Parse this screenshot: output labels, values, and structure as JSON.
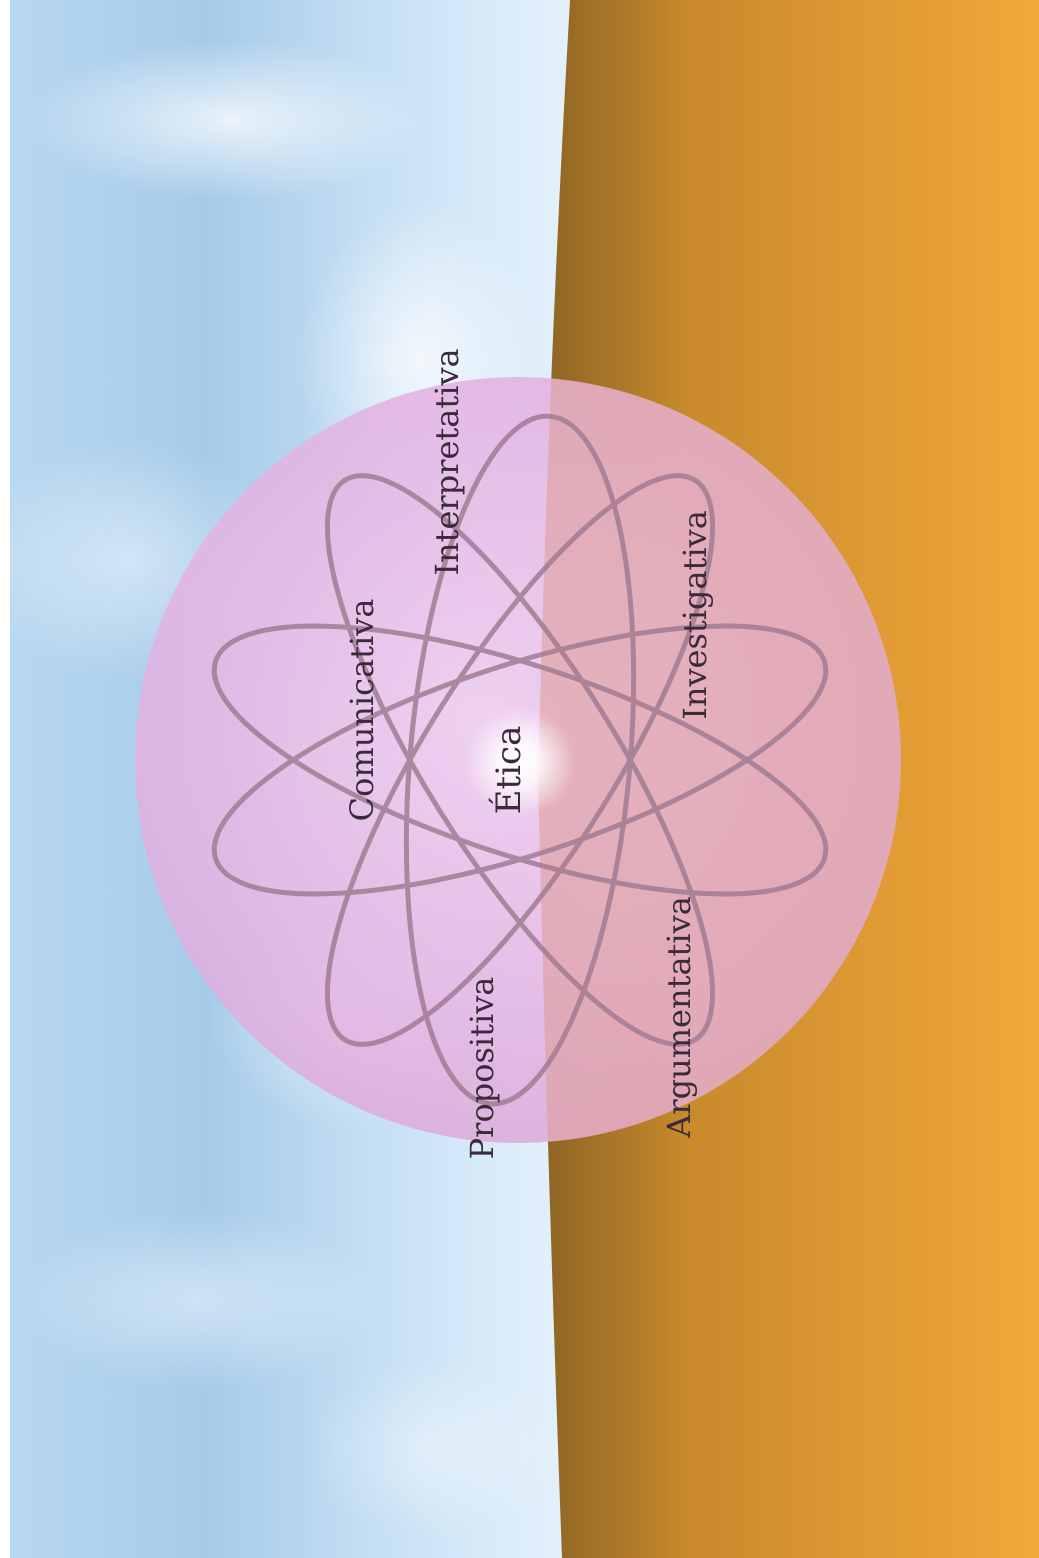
{
  "diagram": {
    "center_label": "Ética",
    "competencies": [
      "Interpretativa",
      "Comunicativa",
      "Investigativa",
      "Propositiva",
      "Argumentativa"
    ]
  },
  "colors": {
    "sky_light": "#dcecf8",
    "sky_mid": "#a9cdea",
    "ground_dark": "#8e6a2a",
    "ground_light": "#f0a638",
    "sphere": "#e8b6e6",
    "orbit": "#a07890",
    "text": "#3a2a3a"
  }
}
